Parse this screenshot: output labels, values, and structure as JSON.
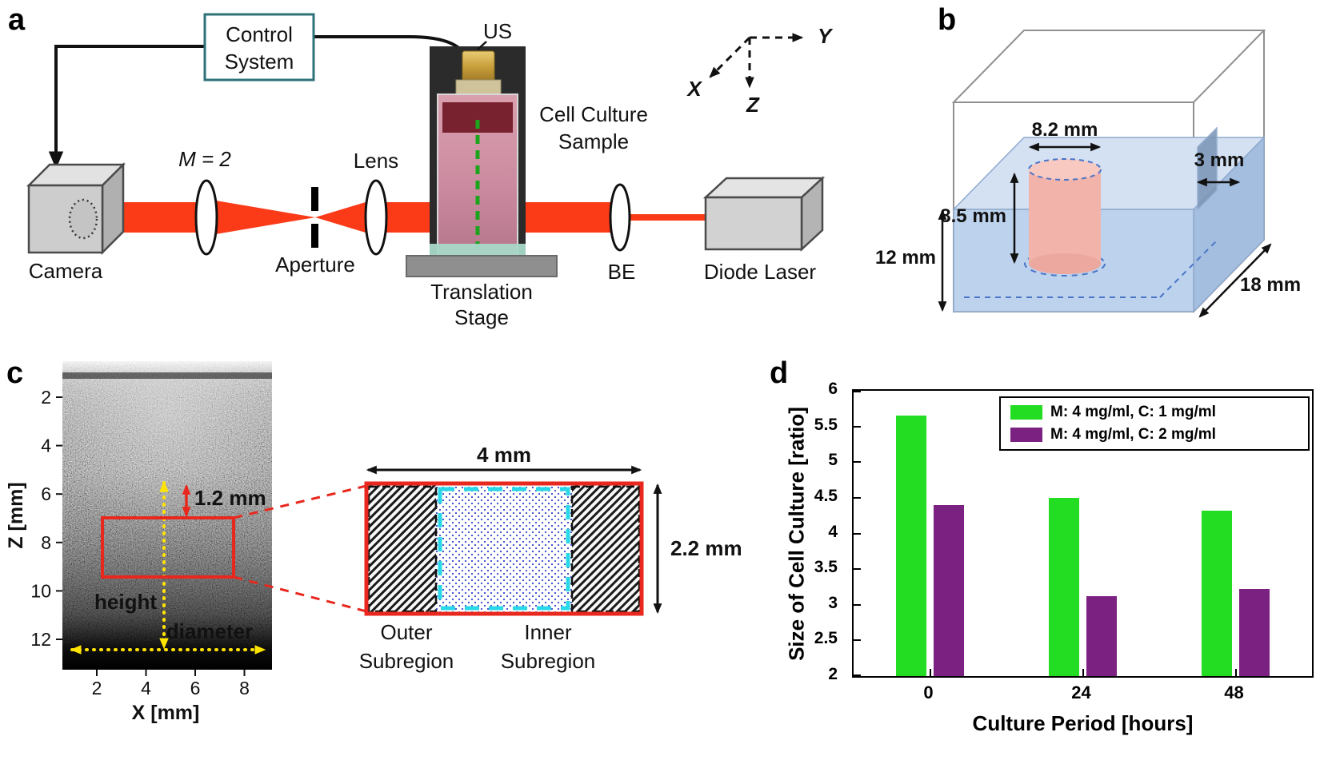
{
  "panels": {
    "a": {
      "label": "a",
      "control_system": {
        "line1": "Control",
        "line2": "System"
      },
      "camera_label": "Camera",
      "magnification_label": "M = 2",
      "aperture_label": "Aperture",
      "lens_label": "Lens",
      "us_label": "US",
      "cell_culture_sample": {
        "line1": "Cell Culture",
        "line2": "Sample"
      },
      "translation_stage": {
        "line1": "Translation",
        "line2": "Stage"
      },
      "be_label": "BE",
      "diode_laser_label": "Diode Laser",
      "axes": {
        "x": "X",
        "y": "Y",
        "z": "Z"
      },
      "colors": {
        "beam": "#fb3a18",
        "green_line": "#1ca51c"
      }
    },
    "b": {
      "label": "b",
      "dimensions": {
        "cylinder_diameter": "8.2 mm",
        "wall_offset": "3 mm",
        "cylinder_height": "8.5 mm",
        "chamber_height": "12 mm",
        "chamber_depth": "18 mm"
      },
      "colors": {
        "mold_blue": "#bdd2ec",
        "sample_pink": "#f2b3aa",
        "hidden_edge_blue": "#4a74c8"
      }
    },
    "c": {
      "label": "c",
      "y_axis_label": "Z [mm]",
      "x_axis_label": "X [mm]",
      "y_ticks": [
        "2",
        "4",
        "6",
        "8",
        "10",
        "12"
      ],
      "x_ticks": [
        "2",
        "4",
        "6",
        "8"
      ],
      "annotations": {
        "offset": "1.2 mm",
        "height": "height",
        "diameter": "diameter",
        "region_width": "4 mm",
        "region_height": "2.2 mm",
        "outer_subregion": {
          "line1": "Outer",
          "line2": "Subregion"
        },
        "inner_subregion": {
          "line1": "Inner",
          "line2": "Subregion"
        }
      },
      "colors": {
        "red": "#e8281e",
        "yellow": "#ffe400",
        "inner_blue": "#2233dd",
        "cyan": "#28d8e8"
      }
    },
    "d": {
      "label": "d"
    }
  },
  "chart_data": {
    "type": "bar",
    "title": "",
    "xlabel": "Culture Period [hours]",
    "ylabel": "Size of Cell Culture [ratio]",
    "categories": [
      "0",
      "24",
      "48"
    ],
    "series": [
      {
        "name": "M: 4 mg/ml, C: 1 mg/ml",
        "color": "#22dd22",
        "values": [
          5.65,
          4.5,
          4.32
        ]
      },
      {
        "name": "M: 4 mg/ml, C: 2 mg/ml",
        "color": "#7a2182",
        "values": [
          4.4,
          3.12,
          3.22
        ]
      }
    ],
    "ylim": [
      2,
      6
    ],
    "yticks": [
      2,
      2.5,
      3,
      3.5,
      4,
      4.5,
      5,
      5.5,
      6
    ],
    "legend_position": "top-right",
    "grid": false
  }
}
